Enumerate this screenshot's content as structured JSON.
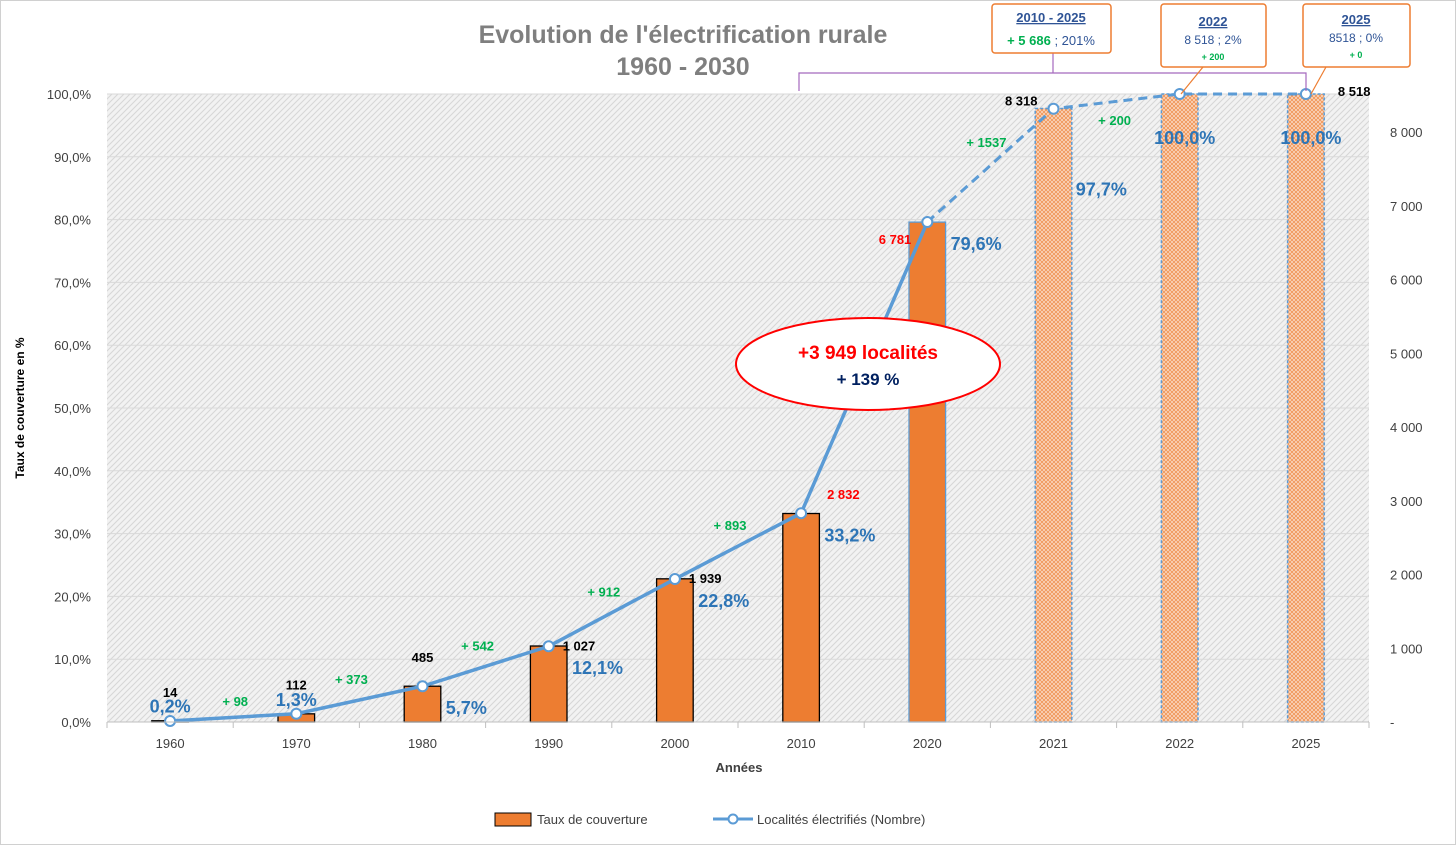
{
  "chart_data": {
    "type": "bar",
    "title_line1": "Evolution de l'électrification rurale",
    "title_line2": "1960 - 2030",
    "xlabel": "Années",
    "ylabel": "Taux de couverture en %",
    "categories": [
      "1960",
      "1970",
      "1980",
      "1990",
      "2000",
      "2010",
      "2020",
      "2021",
      "2022",
      "2025"
    ],
    "ylim_left": [
      0,
      100
    ],
    "ylim_right": [
      0,
      8518
    ],
    "left_ticks": [
      "0,0%",
      "10,0%",
      "20,0%",
      "30,0%",
      "40,0%",
      "50,0%",
      "60,0%",
      "70,0%",
      "80,0%",
      "90,0%",
      "100,0%"
    ],
    "right_ticks": [
      "-",
      "1 000",
      "2 000",
      "3 000",
      "4 000",
      "5 000",
      "6 000",
      "7 000",
      "8 000"
    ],
    "right_tick_values": [
      0,
      1000,
      2000,
      3000,
      4000,
      5000,
      6000,
      7000,
      8000
    ],
    "series": [
      {
        "name": "Taux de couverture",
        "axis": "left",
        "color": "#ED7D31",
        "values": [
          0.2,
          1.3,
          5.7,
          12.1,
          22.8,
          33.2,
          79.6,
          97.7,
          100.0,
          100.0
        ],
        "labels": [
          "0,2%",
          "1,3%",
          "5,7%",
          "12,1%",
          "22,8%",
          "33,2%",
          "79,6%",
          "97,7%",
          "100,0%",
          "100,0%"
        ],
        "projected": [
          false,
          false,
          false,
          false,
          false,
          false,
          false,
          true,
          true,
          true
        ]
      },
      {
        "name": "Localités électrifiés (Nombre)",
        "axis": "right",
        "color": "#5B9BD5",
        "values": [
          14,
          112,
          485,
          1027,
          1939,
          2832,
          6781,
          8318,
          8518,
          8518
        ],
        "labels": [
          "14",
          "112",
          "485",
          "1 027",
          "1 939",
          "2 832",
          "6 781",
          "8 318",
          "",
          "8 518"
        ],
        "label_colors": [
          "#000000",
          "#000000",
          "#000000",
          "#000000",
          "#000000",
          "#FF0000",
          "#FF0000",
          "#000000",
          "#000000",
          "#000000"
        ],
        "projected_from_index": 6
      }
    ],
    "increments": [
      "+ 98",
      "+ 373",
      "+ 542",
      "+ 912",
      "+ 893",
      "",
      "+ 1537",
      "+ 200",
      ""
    ],
    "callout_ellipse": {
      "line1": "+3 949 localités",
      "line2": "+ 139 %"
    },
    "boxes": [
      {
        "title": "2010 - 2025",
        "line1": "+ 5 686",
        "line1b": " ; 201%",
        "line2": ""
      },
      {
        "title": "2022",
        "line1": "8 518 ; 2%",
        "line1b": "",
        "line2": "+ 200"
      },
      {
        "title": "2025",
        "line1": "8518 ; 0%",
        "line1b": "",
        "line2": "+ 0"
      }
    ],
    "legend_position": "bottom",
    "grid": true,
    "colors": {
      "bar": "#ED7D31",
      "line": "#5B9BD5",
      "increment": "#00B050",
      "pct_label": "#2E75B6",
      "accent_red": "#FF0000",
      "box_border": "#ED7D31",
      "box_title": "#2F5496",
      "bracket": "#A569BD"
    }
  }
}
